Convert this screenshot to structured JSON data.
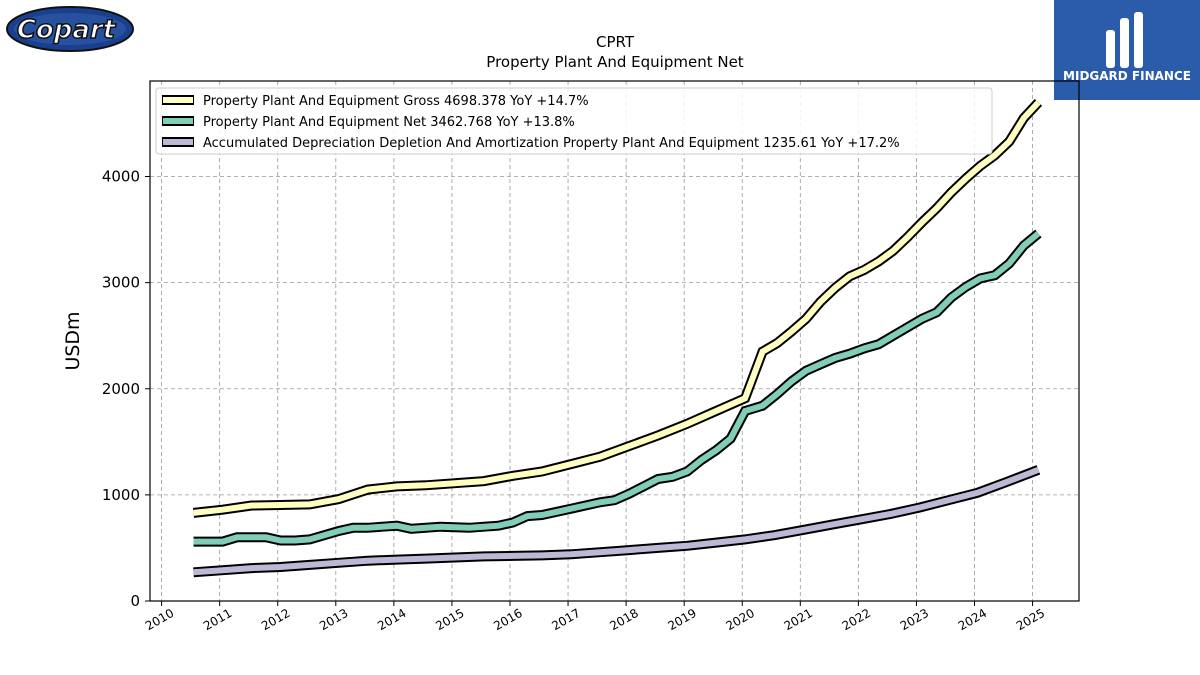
{
  "branding": {
    "left_logo_text": "Copart",
    "right_logo_text": "MIDGARD FINANCE",
    "left_logo_color": "#1b3f8f",
    "right_logo_color": "#2a5caa"
  },
  "chart_data": {
    "type": "line",
    "title": "CPRT",
    "subtitle": "Property Plant And Equipment Net",
    "xlabel": "",
    "ylabel": "USDm",
    "xlim": [
      2009.8,
      2025.8
    ],
    "ylim": [
      0,
      4900
    ],
    "x_ticks": [
      "2010",
      "2011",
      "2012",
      "2013",
      "2014",
      "2015",
      "2016",
      "2017",
      "2018",
      "2019",
      "2020",
      "2021",
      "2022",
      "2023",
      "2024",
      "2025"
    ],
    "y_ticks": [
      0,
      1000,
      2000,
      3000,
      4000
    ],
    "grid": true,
    "legend_position": "top-left",
    "series": [
      {
        "name": "Property Plant And Equipment Gross",
        "legend": "Property Plant And Equipment Gross  4698.378 YoY +14.7%",
        "color": "#ffffc0",
        "points": [
          [
            2010.55,
            830
          ],
          [
            2011.05,
            860
          ],
          [
            2011.55,
            900
          ],
          [
            2012.05,
            905
          ],
          [
            2012.55,
            910
          ],
          [
            2013.05,
            960
          ],
          [
            2013.55,
            1050
          ],
          [
            2014.05,
            1080
          ],
          [
            2014.55,
            1090
          ],
          [
            2015.05,
            1110
          ],
          [
            2015.55,
            1130
          ],
          [
            2016.05,
            1180
          ],
          [
            2016.55,
            1220
          ],
          [
            2017.05,
            1290
          ],
          [
            2017.55,
            1360
          ],
          [
            2018.05,
            1460
          ],
          [
            2018.55,
            1560
          ],
          [
            2019.05,
            1670
          ],
          [
            2019.55,
            1790
          ],
          [
            2020.05,
            1910
          ],
          [
            2020.35,
            2350
          ],
          [
            2020.6,
            2430
          ],
          [
            2020.85,
            2540
          ],
          [
            2021.1,
            2660
          ],
          [
            2021.35,
            2820
          ],
          [
            2021.6,
            2950
          ],
          [
            2021.85,
            3060
          ],
          [
            2022.1,
            3120
          ],
          [
            2022.35,
            3200
          ],
          [
            2022.6,
            3300
          ],
          [
            2022.85,
            3430
          ],
          [
            2023.1,
            3570
          ],
          [
            2023.35,
            3700
          ],
          [
            2023.6,
            3850
          ],
          [
            2023.85,
            3980
          ],
          [
            2024.1,
            4100
          ],
          [
            2024.35,
            4200
          ],
          [
            2024.6,
            4330
          ],
          [
            2024.85,
            4550
          ],
          [
            2025.1,
            4698
          ]
        ]
      },
      {
        "name": "Property Plant And Equipment Net",
        "legend": "Property Plant And Equipment Net  3462.768 YoY +13.8%",
        "color": "#80cdb8",
        "points": [
          [
            2010.55,
            560
          ],
          [
            2011.05,
            560
          ],
          [
            2011.3,
            600
          ],
          [
            2011.55,
            600
          ],
          [
            2011.8,
            600
          ],
          [
            2012.05,
            570
          ],
          [
            2012.3,
            570
          ],
          [
            2012.55,
            580
          ],
          [
            2012.8,
            620
          ],
          [
            2013.05,
            660
          ],
          [
            2013.3,
            690
          ],
          [
            2013.55,
            690
          ],
          [
            2013.8,
            700
          ],
          [
            2014.05,
            710
          ],
          [
            2014.3,
            680
          ],
          [
            2014.55,
            690
          ],
          [
            2014.8,
            700
          ],
          [
            2015.05,
            695
          ],
          [
            2015.3,
            690
          ],
          [
            2015.55,
            700
          ],
          [
            2015.8,
            710
          ],
          [
            2016.05,
            740
          ],
          [
            2016.3,
            800
          ],
          [
            2016.55,
            810
          ],
          [
            2016.8,
            840
          ],
          [
            2017.05,
            870
          ],
          [
            2017.3,
            900
          ],
          [
            2017.55,
            930
          ],
          [
            2017.8,
            950
          ],
          [
            2018.05,
            1010
          ],
          [
            2018.3,
            1080
          ],
          [
            2018.55,
            1150
          ],
          [
            2018.8,
            1170
          ],
          [
            2019.05,
            1220
          ],
          [
            2019.3,
            1330
          ],
          [
            2019.55,
            1420
          ],
          [
            2019.8,
            1530
          ],
          [
            2020.05,
            1790
          ],
          [
            2020.35,
            1840
          ],
          [
            2020.6,
            1950
          ],
          [
            2020.85,
            2070
          ],
          [
            2021.1,
            2170
          ],
          [
            2021.35,
            2230
          ],
          [
            2021.6,
            2290
          ],
          [
            2021.85,
            2330
          ],
          [
            2022.1,
            2380
          ],
          [
            2022.35,
            2420
          ],
          [
            2022.6,
            2500
          ],
          [
            2022.85,
            2580
          ],
          [
            2023.1,
            2660
          ],
          [
            2023.35,
            2720
          ],
          [
            2023.6,
            2860
          ],
          [
            2023.85,
            2960
          ],
          [
            2024.1,
            3040
          ],
          [
            2024.35,
            3070
          ],
          [
            2024.6,
            3180
          ],
          [
            2024.85,
            3350
          ],
          [
            2025.1,
            3463
          ]
        ]
      },
      {
        "name": "Accumulated Depreciation Depletion And Amortization Property Plant And Equipment",
        "legend": "Accumulated Depreciation Depletion And Amortization Property Plant And Equipment  1235.61 YoY +17.2%",
        "color": "#bcb8d6",
        "points": [
          [
            2010.55,
            270
          ],
          [
            2011.05,
            290
          ],
          [
            2011.55,
            310
          ],
          [
            2012.05,
            320
          ],
          [
            2012.55,
            340
          ],
          [
            2013.05,
            360
          ],
          [
            2013.55,
            380
          ],
          [
            2014.05,
            390
          ],
          [
            2014.55,
            400
          ],
          [
            2015.05,
            410
          ],
          [
            2015.55,
            420
          ],
          [
            2016.05,
            425
          ],
          [
            2016.55,
            430
          ],
          [
            2017.05,
            440
          ],
          [
            2017.55,
            460
          ],
          [
            2018.05,
            480
          ],
          [
            2018.55,
            500
          ],
          [
            2019.05,
            520
          ],
          [
            2019.55,
            550
          ],
          [
            2020.05,
            580
          ],
          [
            2020.55,
            620
          ],
          [
            2021.05,
            670
          ],
          [
            2021.55,
            720
          ],
          [
            2022.05,
            770
          ],
          [
            2022.55,
            820
          ],
          [
            2023.05,
            880
          ],
          [
            2023.55,
            950
          ],
          [
            2024.05,
            1020
          ],
          [
            2024.55,
            1120
          ],
          [
            2025.1,
            1236
          ]
        ]
      }
    ]
  }
}
